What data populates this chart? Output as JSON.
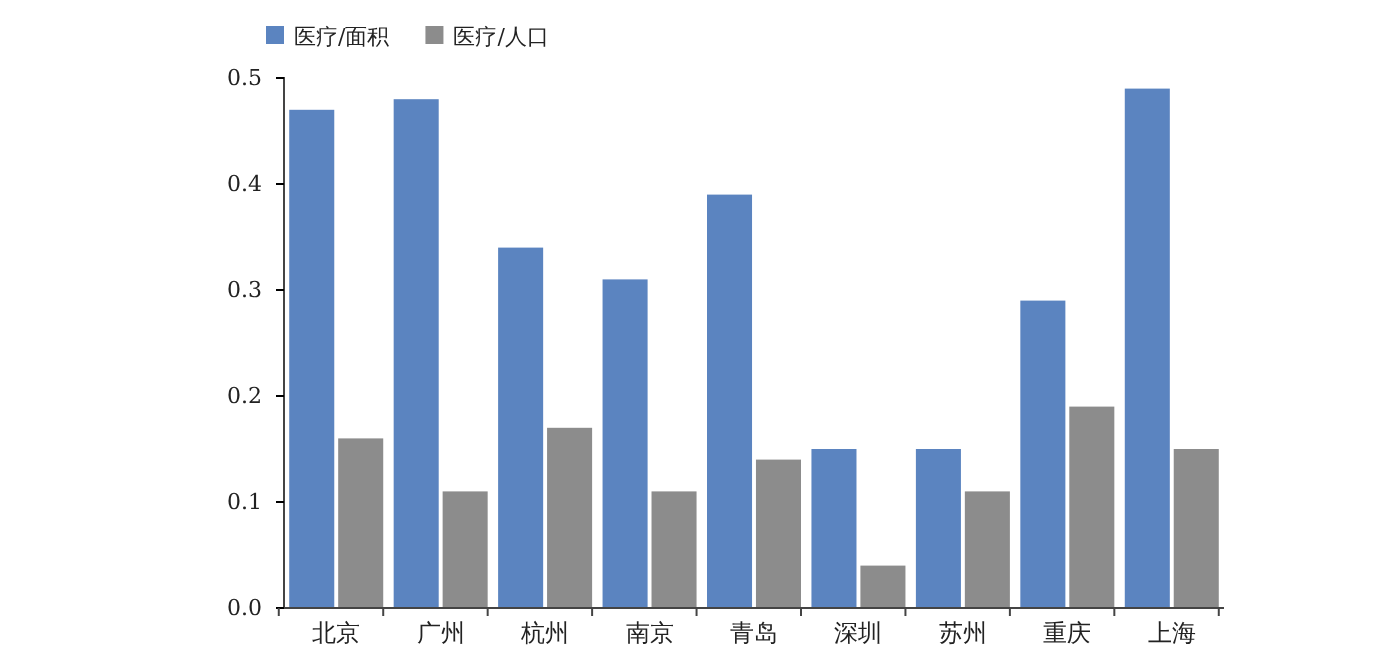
{
  "chart_data": {
    "type": "bar",
    "categories": [
      "北京",
      "广州",
      "杭州",
      "南京",
      "青岛",
      "深圳",
      "苏州",
      "重庆",
      "上海"
    ],
    "series": [
      {
        "name": "医疗/面积",
        "color": "#5b84c0",
        "values": [
          0.47,
          0.48,
          0.34,
          0.31,
          0.39,
          0.15,
          0.15,
          0.29,
          0.49
        ]
      },
      {
        "name": "医疗/人口",
        "color": "#8c8c8c",
        "values": [
          0.16,
          0.11,
          0.17,
          0.11,
          0.14,
          0.04,
          0.11,
          0.19,
          0.15
        ]
      }
    ],
    "ylim": [
      0,
      0.5
    ],
    "yticks": [
      {
        "value": 0,
        "label": "0.0"
      },
      {
        "value": 0.1,
        "label": "0.1"
      },
      {
        "value": 0.2,
        "label": "0.2"
      },
      {
        "value": 0.3,
        "label": "0.3"
      },
      {
        "value": 0.4,
        "label": "0.4"
      },
      {
        "value": 0.5,
        "label": "0.5"
      }
    ],
    "grid": false,
    "legend": "top"
  }
}
